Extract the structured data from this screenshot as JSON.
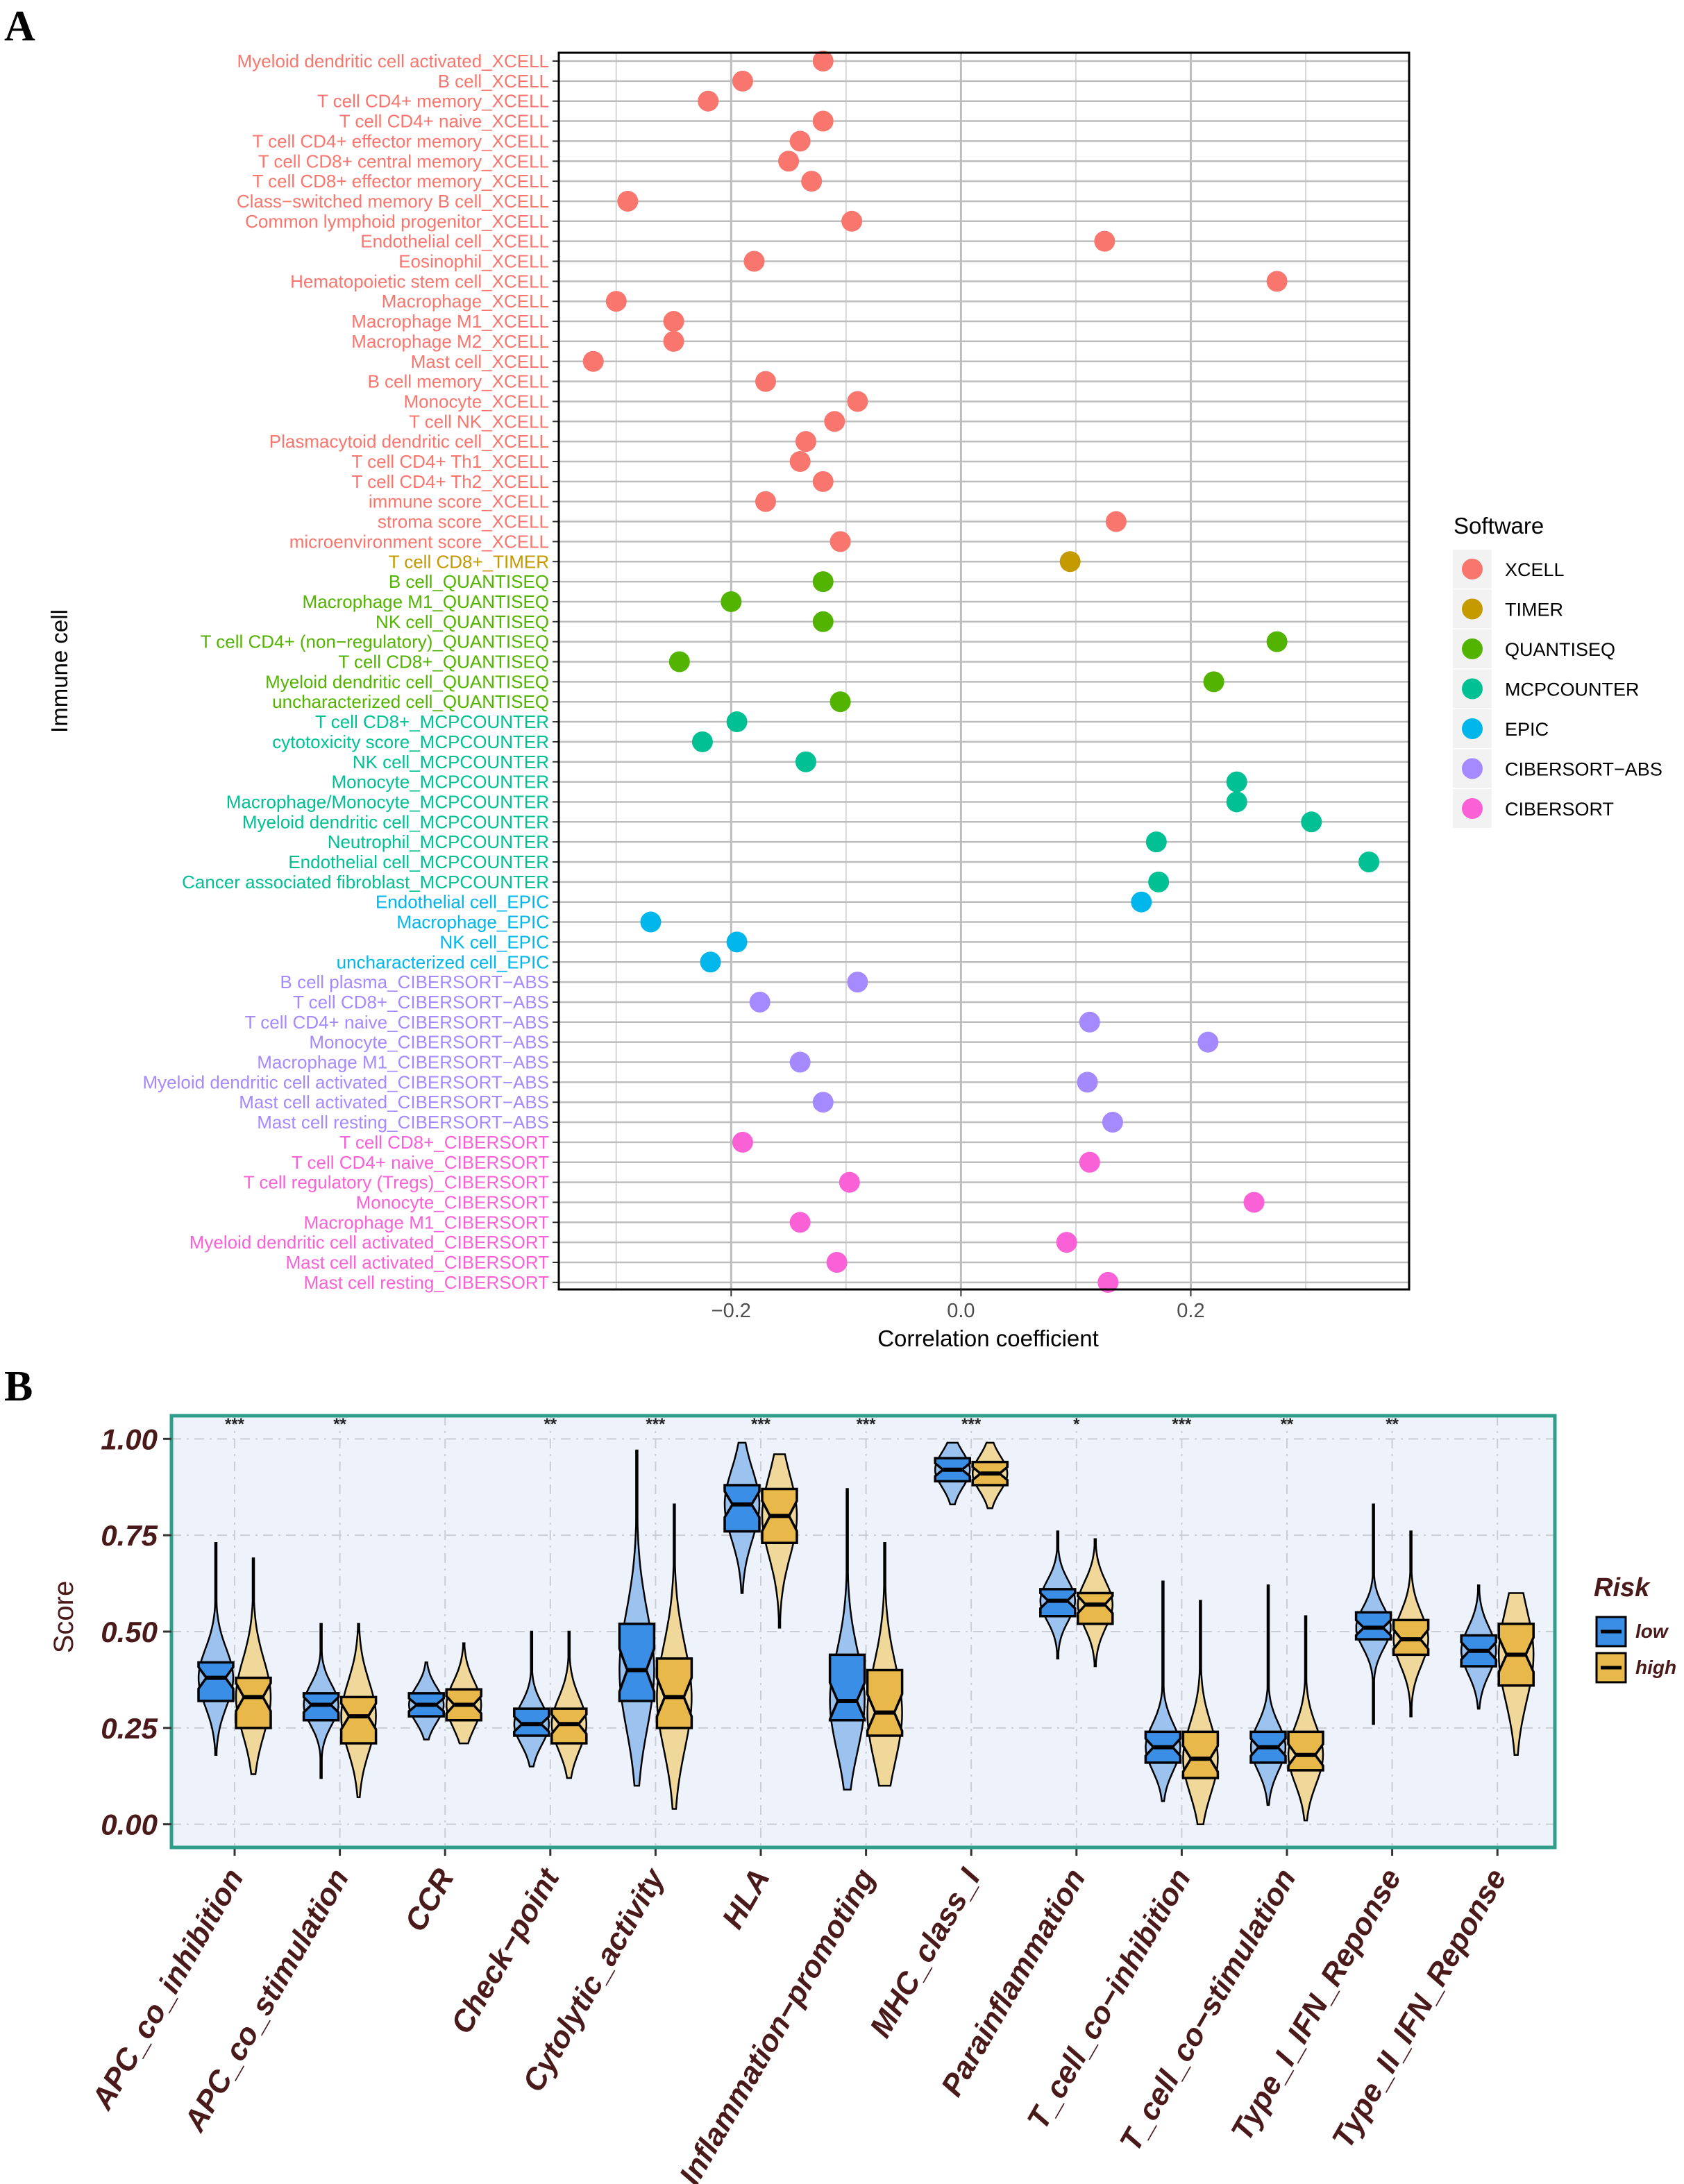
{
  "panel_a": {
    "letter": "A",
    "chart_data": {
      "type": "scatter",
      "xlabel": "Correlation coefficient",
      "ylabel": "Immune cell",
      "xlim": [
        -0.35,
        0.39
      ],
      "xticks": [
        -0.2,
        0.0,
        0.2
      ],
      "xtick_labels": [
        "−0.2",
        "0.0",
        "0.2"
      ],
      "legend_title": "Software",
      "legend_position": "right",
      "software": [
        {
          "name": "XCELL",
          "color": "#F8766D"
        },
        {
          "name": "TIMER",
          "color": "#C49A00"
        },
        {
          "name": "QUANTISEQ",
          "color": "#53B400"
        },
        {
          "name": "MCPCOUNTER",
          "color": "#00C094"
        },
        {
          "name": "EPIC",
          "color": "#00B6EB"
        },
        {
          "name": "CIBERSORT−ABS",
          "color": "#A58AFF"
        },
        {
          "name": "CIBERSORT",
          "color": "#FB61D7"
        }
      ],
      "points": [
        {
          "label": "Myeloid dendritic cell activated_XCELL",
          "sw": 0,
          "x": -0.12
        },
        {
          "label": "B cell_XCELL",
          "sw": 0,
          "x": -0.19
        },
        {
          "label": "T cell CD4+ memory_XCELL",
          "sw": 0,
          "x": -0.22
        },
        {
          "label": "T cell CD4+ naive_XCELL",
          "sw": 0,
          "x": -0.12
        },
        {
          "label": "T cell CD4+ effector memory_XCELL",
          "sw": 0,
          "x": -0.14
        },
        {
          "label": "T cell CD8+ central memory_XCELL",
          "sw": 0,
          "x": -0.15
        },
        {
          "label": "T cell CD8+ effector memory_XCELL",
          "sw": 0,
          "x": -0.13
        },
        {
          "label": "Class−switched memory B cell_XCELL",
          "sw": 0,
          "x": -0.29
        },
        {
          "label": "Common lymphoid progenitor_XCELL",
          "sw": 0,
          "x": -0.095
        },
        {
          "label": "Endothelial cell_XCELL",
          "sw": 0,
          "x": 0.125
        },
        {
          "label": "Eosinophil_XCELL",
          "sw": 0,
          "x": -0.18
        },
        {
          "label": "Hematopoietic stem cell_XCELL",
          "sw": 0,
          "x": 0.275
        },
        {
          "label": "Macrophage_XCELL",
          "sw": 0,
          "x": -0.3
        },
        {
          "label": "Macrophage M1_XCELL",
          "sw": 0,
          "x": -0.25
        },
        {
          "label": "Macrophage M2_XCELL",
          "sw": 0,
          "x": -0.25
        },
        {
          "label": "Mast cell_XCELL",
          "sw": 0,
          "x": -0.32
        },
        {
          "label": "B cell memory_XCELL",
          "sw": 0,
          "x": -0.17
        },
        {
          "label": "Monocyte_XCELL",
          "sw": 0,
          "x": -0.09
        },
        {
          "label": "T cell NK_XCELL",
          "sw": 0,
          "x": -0.11
        },
        {
          "label": "Plasmacytoid dendritic cell_XCELL",
          "sw": 0,
          "x": -0.135
        },
        {
          "label": "T cell CD4+ Th1_XCELL",
          "sw": 0,
          "x": -0.14
        },
        {
          "label": "T cell CD4+ Th2_XCELL",
          "sw": 0,
          "x": -0.12
        },
        {
          "label": "immune score_XCELL",
          "sw": 0,
          "x": -0.17
        },
        {
          "label": "stroma score_XCELL",
          "sw": 0,
          "x": 0.135
        },
        {
          "label": "microenvironment score_XCELL",
          "sw": 0,
          "x": -0.105
        },
        {
          "label": "T cell CD8+_TIMER",
          "sw": 1,
          "x": 0.095
        },
        {
          "label": "B cell_QUANTISEQ",
          "sw": 2,
          "x": -0.12
        },
        {
          "label": "Macrophage M1_QUANTISEQ",
          "sw": 2,
          "x": -0.2
        },
        {
          "label": "NK cell_QUANTISEQ",
          "sw": 2,
          "x": -0.12
        },
        {
          "label": "T cell CD4+ (non−regulatory)_QUANTISEQ",
          "sw": 2,
          "x": 0.275
        },
        {
          "label": "T cell CD8+_QUANTISEQ",
          "sw": 2,
          "x": -0.245
        },
        {
          "label": "Myeloid dendritic cell_QUANTISEQ",
          "sw": 2,
          "x": 0.22
        },
        {
          "label": "uncharacterized cell_QUANTISEQ",
          "sw": 2,
          "x": -0.105
        },
        {
          "label": "T cell CD8+_MCPCOUNTER",
          "sw": 3,
          "x": -0.195
        },
        {
          "label": "cytotoxicity score_MCPCOUNTER",
          "sw": 3,
          "x": -0.225
        },
        {
          "label": "NK cell_MCPCOUNTER",
          "sw": 3,
          "x": -0.135
        },
        {
          "label": "Monocyte_MCPCOUNTER",
          "sw": 3,
          "x": 0.24
        },
        {
          "label": "Macrophage/Monocyte_MCPCOUNTER",
          "sw": 3,
          "x": 0.24
        },
        {
          "label": "Myeloid dendritic cell_MCPCOUNTER",
          "sw": 3,
          "x": 0.305
        },
        {
          "label": "Neutrophil_MCPCOUNTER",
          "sw": 3,
          "x": 0.17
        },
        {
          "label": "Endothelial cell_MCPCOUNTER",
          "sw": 3,
          "x": 0.355
        },
        {
          "label": "Cancer associated fibroblast_MCPCOUNTER",
          "sw": 3,
          "x": 0.172
        },
        {
          "label": "Endothelial cell_EPIC",
          "sw": 4,
          "x": 0.157
        },
        {
          "label": "Macrophage_EPIC",
          "sw": 4,
          "x": -0.27
        },
        {
          "label": "NK cell_EPIC",
          "sw": 4,
          "x": -0.195
        },
        {
          "label": "uncharacterized cell_EPIC",
          "sw": 4,
          "x": -0.218
        },
        {
          "label": "B cell plasma_CIBERSORT−ABS",
          "sw": 5,
          "x": -0.09
        },
        {
          "label": "T cell CD8+_CIBERSORT−ABS",
          "sw": 5,
          "x": -0.175
        },
        {
          "label": "T cell CD4+ naive_CIBERSORT−ABS",
          "sw": 5,
          "x": 0.112
        },
        {
          "label": "Monocyte_CIBERSORT−ABS",
          "sw": 5,
          "x": 0.215
        },
        {
          "label": "Macrophage M1_CIBERSORT−ABS",
          "sw": 5,
          "x": -0.14
        },
        {
          "label": "Myeloid dendritic cell activated_CIBERSORT−ABS",
          "sw": 5,
          "x": 0.11
        },
        {
          "label": "Mast cell activated_CIBERSORT−ABS",
          "sw": 5,
          "x": -0.12
        },
        {
          "label": "Mast cell resting_CIBERSORT−ABS",
          "sw": 5,
          "x": 0.132
        },
        {
          "label": "T cell CD8+_CIBERSORT",
          "sw": 6,
          "x": -0.19
        },
        {
          "label": "T cell CD4+ naive_CIBERSORT",
          "sw": 6,
          "x": 0.112
        },
        {
          "label": "T cell regulatory (Tregs)_CIBERSORT",
          "sw": 6,
          "x": -0.097
        },
        {
          "label": "Monocyte_CIBERSORT",
          "sw": 6,
          "x": 0.255
        },
        {
          "label": "Macrophage M1_CIBERSORT",
          "sw": 6,
          "x": -0.14
        },
        {
          "label": "Myeloid dendritic cell activated_CIBERSORT",
          "sw": 6,
          "x": 0.092
        },
        {
          "label": "Mast cell activated_CIBERSORT",
          "sw": 6,
          "x": -0.108
        },
        {
          "label": "Mast cell resting_CIBERSORT",
          "sw": 6,
          "x": 0.128
        }
      ]
    }
  },
  "panel_b": {
    "letter": "B",
    "chart_data": {
      "type": "violin",
      "ylabel": "Score",
      "ylim": [
        -0.06,
        1.06
      ],
      "yticks": [
        0.0,
        0.25,
        0.5,
        0.75,
        1.0
      ],
      "ytick_labels": [
        "0.00",
        "0.25",
        "0.50",
        "0.75",
        "1.00"
      ],
      "legend_title": "Risk",
      "legend_position": "right",
      "groups": [
        {
          "name": "low",
          "fill": "#3A8EE6",
          "violin": "#9CC3F0"
        },
        {
          "name": "high",
          "fill": "#E9B84A",
          "violin": "#F0D79A"
        }
      ],
      "categories": [
        {
          "name": "APC_co_inhibition",
          "sig": "***",
          "low": {
            "min": 0.18,
            "q1": 0.32,
            "med": 0.38,
            "q3": 0.42,
            "max": 0.73
          },
          "high": {
            "min": 0.13,
            "q1": 0.25,
            "med": 0.33,
            "q3": 0.38,
            "max": 0.69
          }
        },
        {
          "name": "APC_co_stimulation",
          "sig": "**",
          "low": {
            "min": 0.12,
            "q1": 0.27,
            "med": 0.31,
            "q3": 0.34,
            "max": 0.52
          },
          "high": {
            "min": 0.07,
            "q1": 0.21,
            "med": 0.28,
            "q3": 0.33,
            "max": 0.52
          }
        },
        {
          "name": "CCR",
          "sig": "",
          "low": {
            "min": 0.22,
            "q1": 0.28,
            "med": 0.31,
            "q3": 0.34,
            "max": 0.42
          },
          "high": {
            "min": 0.21,
            "q1": 0.27,
            "med": 0.31,
            "q3": 0.35,
            "max": 0.47
          }
        },
        {
          "name": "Check−point",
          "sig": "**",
          "low": {
            "min": 0.15,
            "q1": 0.23,
            "med": 0.26,
            "q3": 0.3,
            "max": 0.5
          },
          "high": {
            "min": 0.12,
            "q1": 0.21,
            "med": 0.26,
            "q3": 0.3,
            "max": 0.5
          }
        },
        {
          "name": "Cytolytic_activity",
          "sig": "***",
          "low": {
            "min": 0.1,
            "q1": 0.32,
            "med": 0.4,
            "q3": 0.52,
            "max": 0.97
          },
          "high": {
            "min": 0.04,
            "q1": 0.25,
            "med": 0.33,
            "q3": 0.43,
            "max": 0.83
          }
        },
        {
          "name": "HLA",
          "sig": "***",
          "low": {
            "min": 0.6,
            "q1": 0.76,
            "med": 0.83,
            "q3": 0.88,
            "max": 0.99
          },
          "high": {
            "min": 0.51,
            "q1": 0.73,
            "med": 0.8,
            "q3": 0.87,
            "max": 0.96
          }
        },
        {
          "name": "Inflammation−promoting",
          "sig": "***",
          "low": {
            "min": 0.09,
            "q1": 0.27,
            "med": 0.32,
            "q3": 0.44,
            "max": 0.87
          },
          "high": {
            "min": 0.1,
            "q1": 0.23,
            "med": 0.29,
            "q3": 0.4,
            "max": 0.73
          }
        },
        {
          "name": "MHC_class_I",
          "sig": "***",
          "low": {
            "min": 0.83,
            "q1": 0.89,
            "med": 0.92,
            "q3": 0.95,
            "max": 0.99
          },
          "high": {
            "min": 0.82,
            "q1": 0.88,
            "med": 0.91,
            "q3": 0.94,
            "max": 0.99
          }
        },
        {
          "name": "Parainflammation",
          "sig": "*",
          "low": {
            "min": 0.43,
            "q1": 0.54,
            "med": 0.58,
            "q3": 0.61,
            "max": 0.76
          },
          "high": {
            "min": 0.41,
            "q1": 0.52,
            "med": 0.57,
            "q3": 0.6,
            "max": 0.74
          }
        },
        {
          "name": "T_cell_co−inhibition",
          "sig": "***",
          "low": {
            "min": 0.06,
            "q1": 0.16,
            "med": 0.2,
            "q3": 0.24,
            "max": 0.63
          },
          "high": {
            "min": 0.0,
            "q1": 0.12,
            "med": 0.17,
            "q3": 0.24,
            "max": 0.58
          }
        },
        {
          "name": "T_cell_co−stimulation",
          "sig": "**",
          "low": {
            "min": 0.05,
            "q1": 0.16,
            "med": 0.2,
            "q3": 0.24,
            "max": 0.62
          },
          "high": {
            "min": 0.01,
            "q1": 0.14,
            "med": 0.18,
            "q3": 0.24,
            "max": 0.54
          }
        },
        {
          "name": "Type_I_IFN_Reponse",
          "sig": "**",
          "low": {
            "min": 0.26,
            "q1": 0.48,
            "med": 0.51,
            "q3": 0.55,
            "max": 0.83
          },
          "high": {
            "min": 0.28,
            "q1": 0.44,
            "med": 0.48,
            "q3": 0.53,
            "max": 0.76
          }
        },
        {
          "name": "Type_II_IFN_Reponse",
          "sig": "",
          "low": {
            "min": 0.3,
            "q1": 0.41,
            "med": 0.45,
            "q3": 0.49,
            "max": 0.62
          },
          "high": {
            "min": 0.18,
            "q1": 0.36,
            "med": 0.44,
            "q3": 0.52,
            "max": 0.6
          }
        }
      ]
    }
  }
}
